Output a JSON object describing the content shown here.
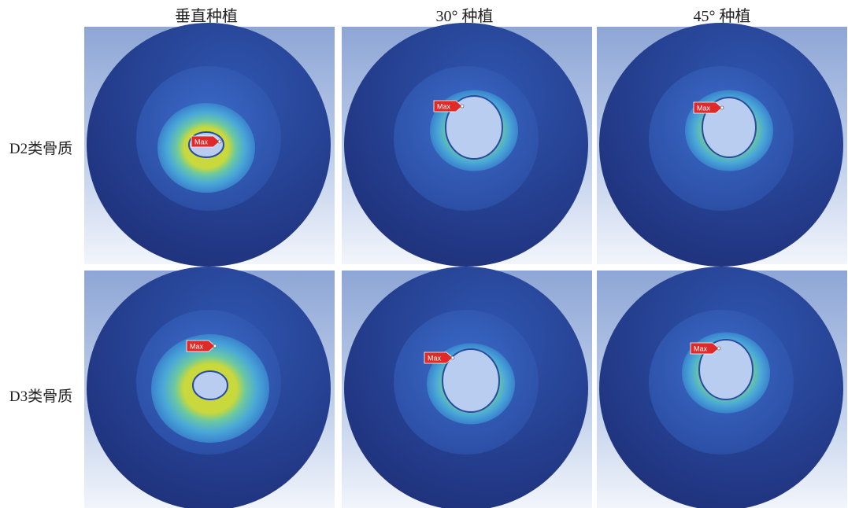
{
  "columns": [
    "垂直种植",
    "30° 种植",
    "45° 种植"
  ],
  "rows": [
    {
      "label": "D2类骨质",
      "panels": [
        {
          "marker": "Max"
        },
        {
          "marker": "Max"
        },
        {
          "marker": "Max"
        }
      ]
    },
    {
      "label": "D3类骨质",
      "panels": [
        {
          "marker": "Max"
        },
        {
          "marker": "Max"
        },
        {
          "marker": "Max"
        }
      ]
    }
  ]
}
